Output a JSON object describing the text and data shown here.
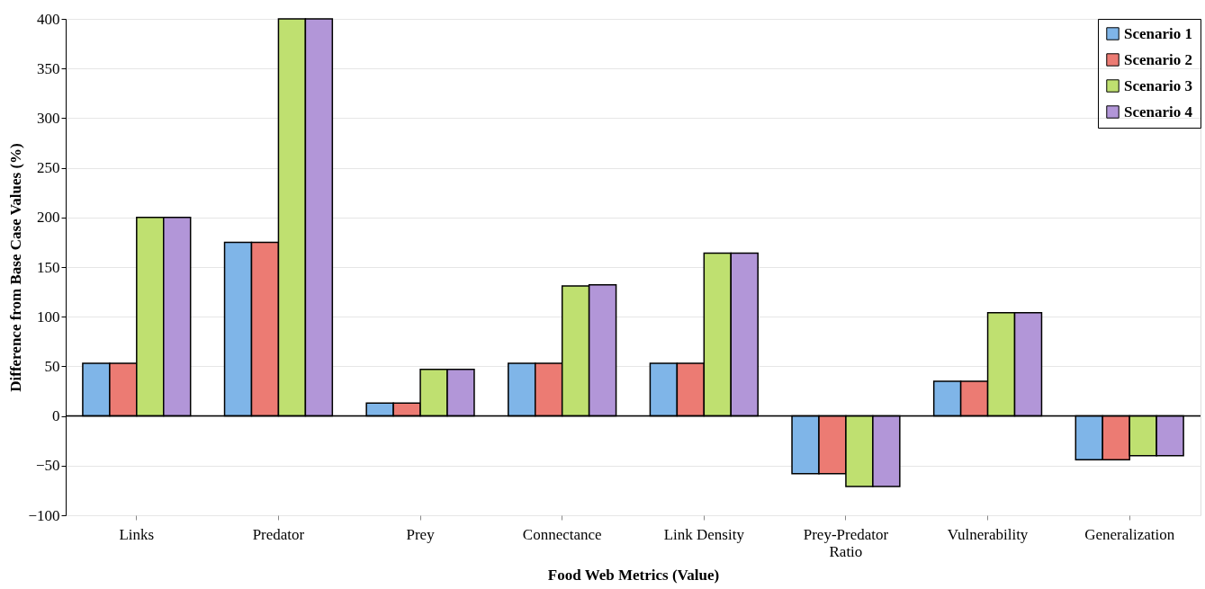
{
  "chart_data": {
    "type": "bar",
    "xlabel": "Food Web Metrics (Value)",
    "ylabel": "Difference from Base Case Values (%)",
    "categories": [
      "Links",
      "Predator",
      "Prey",
      "Connectance",
      "Link Density",
      "Prey-Predator Ratio",
      "Vulnerability",
      "Generalization"
    ],
    "series": [
      {
        "name": "Scenario 1",
        "color": "#7fb5e8",
        "values": [
          53,
          175,
          13,
          53,
          53,
          -58,
          35,
          -44
        ]
      },
      {
        "name": "Scenario 2",
        "color": "#ec7b73",
        "values": [
          53,
          175,
          13,
          53,
          53,
          -58,
          35,
          -44
        ]
      },
      {
        "name": "Scenario 3",
        "color": "#bfe070",
        "values": [
          200,
          400,
          47,
          131,
          164,
          -71,
          104,
          -40
        ]
      },
      {
        "name": "Scenario 4",
        "color": "#b296d8",
        "values": [
          200,
          400,
          47,
          132,
          164,
          -71,
          104,
          -40
        ]
      }
    ],
    "ylim": [
      -100,
      400
    ],
    "yticks": [
      -100,
      -50,
      0,
      50,
      100,
      150,
      200,
      250,
      300,
      350,
      400
    ],
    "grid": "y",
    "legend": "top right"
  }
}
